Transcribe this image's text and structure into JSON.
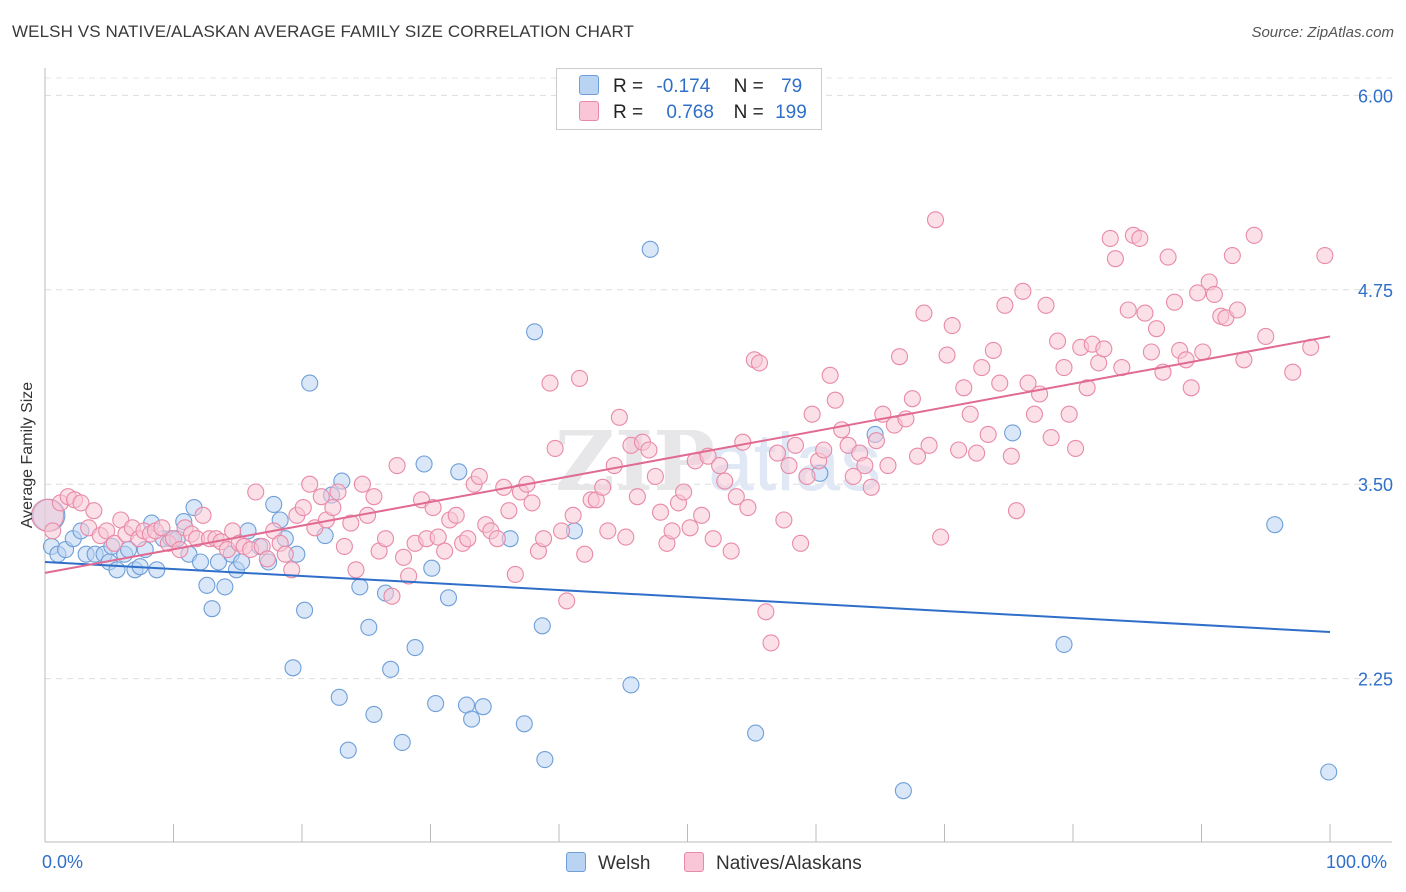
{
  "title": "WELSH VS NATIVE/ALASKAN AVERAGE FAMILY SIZE CORRELATION CHART",
  "source": "Source: ZipAtlas.com",
  "watermark": "ZIPatlas",
  "legend": {
    "r_label": "R =",
    "n_label": "N =",
    "rows": [
      {
        "r": "-0.174",
        "n": "79",
        "color": "#b9d3f2",
        "border": "#6f9fd8"
      },
      {
        "r": "0.768",
        "n": "199",
        "color": "#f8c6d6",
        "border": "#e88aa8"
      }
    ]
  },
  "bottom_legend": [
    {
      "label": "Welsh",
      "color": "#b9d3f2",
      "border": "#6f9fd8"
    },
    {
      "label": "Natives/Alaskans",
      "color": "#f8c6d6",
      "border": "#e88aa8"
    }
  ],
  "x_tick_labels": {
    "left": "0.0%",
    "right": "100.0%"
  },
  "chart_data": {
    "type": "scatter",
    "title": "WELSH VS NATIVE/ALASKAN AVERAGE FAMILY SIZE CORRELATION CHART",
    "xlabel": "",
    "ylabel": "Average Family Size",
    "xlim": [
      0,
      100
    ],
    "ylim": [
      1.2,
      6.15
    ],
    "y_ticks": [
      2.25,
      3.5,
      4.75,
      6.0
    ],
    "y_tick_labels": [
      "2.25",
      "3.50",
      "4.75",
      "6.00"
    ],
    "grid": true,
    "legend_position": "top-center",
    "series": [
      {
        "name": "Welsh",
        "color": "#6f9fd8",
        "fill": "#b9d3f2",
        "trend": {
          "x0": 0,
          "y0": 3.0,
          "x1": 100,
          "y1": 2.55,
          "color": "#2f6fc9"
        },
        "points": [
          [
            0.3,
            3.3
          ],
          [
            0.5,
            3.1
          ],
          [
            1,
            3.05
          ],
          [
            1.6,
            3.08
          ],
          [
            2.2,
            3.15
          ],
          [
            2.8,
            3.2
          ],
          [
            3.2,
            3.05
          ],
          [
            3.9,
            3.05
          ],
          [
            4.6,
            3.05
          ],
          [
            5.0,
            3.0
          ],
          [
            5.2,
            3.1
          ],
          [
            5.6,
            2.95
          ],
          [
            6.2,
            3.05
          ],
          [
            6.5,
            3.08
          ],
          [
            7.0,
            2.95
          ],
          [
            7.4,
            2.97
          ],
          [
            7.8,
            3.08
          ],
          [
            8.3,
            3.25
          ],
          [
            8.7,
            2.95
          ],
          [
            9.2,
            3.15
          ],
          [
            9.8,
            3.15
          ],
          [
            10.3,
            3.15
          ],
          [
            10.8,
            3.26
          ],
          [
            11.2,
            3.05
          ],
          [
            11.6,
            3.35
          ],
          [
            12.1,
            3.0
          ],
          [
            12.6,
            2.85
          ],
          [
            13.0,
            2.7
          ],
          [
            13.5,
            3.0
          ],
          [
            14.0,
            2.84
          ],
          [
            14.5,
            3.05
          ],
          [
            14.9,
            2.95
          ],
          [
            15.3,
            3.0
          ],
          [
            15.8,
            3.2
          ],
          [
            16.7,
            3.1
          ],
          [
            17.4,
            3.0
          ],
          [
            17.8,
            3.37
          ],
          [
            18.3,
            3.27
          ],
          [
            18.7,
            3.15
          ],
          [
            19.6,
            3.05
          ],
          [
            20.2,
            2.69
          ],
          [
            20.6,
            4.15
          ],
          [
            19.3,
            2.32
          ],
          [
            21.8,
            3.17
          ],
          [
            22.3,
            3.43
          ],
          [
            22.9,
            2.13
          ],
          [
            23.6,
            1.79
          ],
          [
            23.1,
            3.52
          ],
          [
            24.5,
            2.84
          ],
          [
            25.2,
            2.58
          ],
          [
            25.6,
            2.02
          ],
          [
            26.5,
            2.8
          ],
          [
            26.9,
            2.31
          ],
          [
            27.8,
            1.84
          ],
          [
            28.8,
            2.45
          ],
          [
            29.5,
            3.63
          ],
          [
            30.1,
            2.96
          ],
          [
            30.4,
            2.09
          ],
          [
            31.4,
            2.77
          ],
          [
            32.2,
            3.58
          ],
          [
            32.8,
            2.08
          ],
          [
            33.2,
            1.99
          ],
          [
            34.1,
            2.07
          ],
          [
            36.2,
            3.15
          ],
          [
            37.3,
            1.96
          ],
          [
            38.1,
            4.48
          ],
          [
            38.7,
            2.59
          ],
          [
            38.9,
            1.73
          ],
          [
            41.2,
            3.2
          ],
          [
            45.6,
            2.21
          ],
          [
            47.1,
            5.01
          ],
          [
            55.3,
            1.9
          ],
          [
            60.3,
            3.57
          ],
          [
            64.6,
            3.82
          ],
          [
            66.8,
            1.53
          ],
          [
            75.3,
            3.83
          ],
          [
            79.3,
            2.47
          ],
          [
            95.7,
            3.24
          ],
          [
            99.9,
            1.65
          ]
        ]
      },
      {
        "name": "Natives/Alaskans",
        "color": "#e88aa8",
        "fill": "#f8c6d6",
        "trend": {
          "x0": 0,
          "y0": 2.93,
          "x1": 100,
          "y1": 4.45,
          "color": "#e06a92"
        },
        "points": [
          [
            0.2,
            3.3
          ],
          [
            0.6,
            3.2
          ],
          [
            1.2,
            3.38
          ],
          [
            1.8,
            3.42
          ],
          [
            2.3,
            3.4
          ],
          [
            2.8,
            3.38
          ],
          [
            3.4,
            3.22
          ],
          [
            3.8,
            3.33
          ],
          [
            4.3,
            3.17
          ],
          [
            4.8,
            3.2
          ],
          [
            5.4,
            3.12
          ],
          [
            5.9,
            3.27
          ],
          [
            6.3,
            3.18
          ],
          [
            6.8,
            3.22
          ],
          [
            7.3,
            3.15
          ],
          [
            7.7,
            3.2
          ],
          [
            8.2,
            3.18
          ],
          [
            8.6,
            3.2
          ],
          [
            9.1,
            3.22
          ],
          [
            9.6,
            3.12
          ],
          [
            10.0,
            3.15
          ],
          [
            10.5,
            3.08
          ],
          [
            10.9,
            3.22
          ],
          [
            11.4,
            3.18
          ],
          [
            11.8,
            3.15
          ],
          [
            12.3,
            3.3
          ],
          [
            12.8,
            3.15
          ],
          [
            13.3,
            3.15
          ],
          [
            13.7,
            3.13
          ],
          [
            14.2,
            3.08
          ],
          [
            14.6,
            3.2
          ],
          [
            15.1,
            3.12
          ],
          [
            15.5,
            3.1
          ],
          [
            16.0,
            3.08
          ],
          [
            16.4,
            3.45
          ],
          [
            16.9,
            3.1
          ],
          [
            17.3,
            3.02
          ],
          [
            17.8,
            3.2
          ],
          [
            18.3,
            3.12
          ],
          [
            18.7,
            3.05
          ],
          [
            19.2,
            2.95
          ],
          [
            19.6,
            3.3
          ],
          [
            20.1,
            3.35
          ],
          [
            20.6,
            3.5
          ],
          [
            21.0,
            3.22
          ],
          [
            21.5,
            3.42
          ],
          [
            21.9,
            3.27
          ],
          [
            22.4,
            3.35
          ],
          [
            22.8,
            3.45
          ],
          [
            23.3,
            3.1
          ],
          [
            23.8,
            3.25
          ],
          [
            24.2,
            2.95
          ],
          [
            24.7,
            3.5
          ],
          [
            25.1,
            3.3
          ],
          [
            25.6,
            3.42
          ],
          [
            26.0,
            3.07
          ],
          [
            26.5,
            3.15
          ],
          [
            27.0,
            2.78
          ],
          [
            27.4,
            3.62
          ],
          [
            27.9,
            3.03
          ],
          [
            28.3,
            2.91
          ],
          [
            28.8,
            3.12
          ],
          [
            29.3,
            3.4
          ],
          [
            29.7,
            3.15
          ],
          [
            30.2,
            3.35
          ],
          [
            30.6,
            3.16
          ],
          [
            31.1,
            3.07
          ],
          [
            31.5,
            3.27
          ],
          [
            32.0,
            3.3
          ],
          [
            32.5,
            3.12
          ],
          [
            32.9,
            3.15
          ],
          [
            33.4,
            3.5
          ],
          [
            33.8,
            3.55
          ],
          [
            34.3,
            3.24
          ],
          [
            34.7,
            3.2
          ],
          [
            35.2,
            3.15
          ],
          [
            35.7,
            3.48
          ],
          [
            36.1,
            3.33
          ],
          [
            36.6,
            2.92
          ],
          [
            37.0,
            3.45
          ],
          [
            37.5,
            3.5
          ],
          [
            37.9,
            3.38
          ],
          [
            38.4,
            3.07
          ],
          [
            38.8,
            3.15
          ],
          [
            39.3,
            4.15
          ],
          [
            39.7,
            3.73
          ],
          [
            40.2,
            3.2
          ],
          [
            40.6,
            2.75
          ],
          [
            41.1,
            3.3
          ],
          [
            41.6,
            4.18
          ],
          [
            42.0,
            3.05
          ],
          [
            42.5,
            3.4
          ],
          [
            42.9,
            3.4
          ],
          [
            43.4,
            3.48
          ],
          [
            43.8,
            3.2
          ],
          [
            44.3,
            3.62
          ],
          [
            44.7,
            3.93
          ],
          [
            45.2,
            3.16
          ],
          [
            45.6,
            3.75
          ],
          [
            46.1,
            3.42
          ],
          [
            46.5,
            3.77
          ],
          [
            47.0,
            3.72
          ],
          [
            47.5,
            3.55
          ],
          [
            47.9,
            3.32
          ],
          [
            48.4,
            3.12
          ],
          [
            48.8,
            3.2
          ],
          [
            49.3,
            3.38
          ],
          [
            49.7,
            3.45
          ],
          [
            50.2,
            3.22
          ],
          [
            50.6,
            3.65
          ],
          [
            51.1,
            3.3
          ],
          [
            51.6,
            3.68
          ],
          [
            52.0,
            3.15
          ],
          [
            52.5,
            3.62
          ],
          [
            52.9,
            3.52
          ],
          [
            53.4,
            3.07
          ],
          [
            53.8,
            3.42
          ],
          [
            54.3,
            3.77
          ],
          [
            54.7,
            3.35
          ],
          [
            55.2,
            4.3
          ],
          [
            55.6,
            4.28
          ],
          [
            56.1,
            2.68
          ],
          [
            56.5,
            2.48
          ],
          [
            57.0,
            3.7
          ],
          [
            57.5,
            3.27
          ],
          [
            57.9,
            3.62
          ],
          [
            58.4,
            3.75
          ],
          [
            58.8,
            3.12
          ],
          [
            59.3,
            3.55
          ],
          [
            59.7,
            3.95
          ],
          [
            60.2,
            3.65
          ],
          [
            60.6,
            3.72
          ],
          [
            61.1,
            4.2
          ],
          [
            61.5,
            4.04
          ],
          [
            62.0,
            3.85
          ],
          [
            62.5,
            3.75
          ],
          [
            62.9,
            3.55
          ],
          [
            63.4,
            3.7
          ],
          [
            63.8,
            3.62
          ],
          [
            64.3,
            3.48
          ],
          [
            64.7,
            3.78
          ],
          [
            65.2,
            3.95
          ],
          [
            65.6,
            3.62
          ],
          [
            66.1,
            3.88
          ],
          [
            66.5,
            4.32
          ],
          [
            67.0,
            3.92
          ],
          [
            67.5,
            4.05
          ],
          [
            67.9,
            3.68
          ],
          [
            68.4,
            4.6
          ],
          [
            68.8,
            3.75
          ],
          [
            69.3,
            5.2
          ],
          [
            69.7,
            3.16
          ],
          [
            70.2,
            4.33
          ],
          [
            70.6,
            4.52
          ],
          [
            71.1,
            3.72
          ],
          [
            71.5,
            4.12
          ],
          [
            72.0,
            3.95
          ],
          [
            72.5,
            3.7
          ],
          [
            72.9,
            4.25
          ],
          [
            73.4,
            3.82
          ],
          [
            73.8,
            4.36
          ],
          [
            74.3,
            4.15
          ],
          [
            74.7,
            4.65
          ],
          [
            75.2,
            3.68
          ],
          [
            75.6,
            3.33
          ],
          [
            76.1,
            4.74
          ],
          [
            76.5,
            4.15
          ],
          [
            77.0,
            3.95
          ],
          [
            77.4,
            4.08
          ],
          [
            77.9,
            4.65
          ],
          [
            78.3,
            3.8
          ],
          [
            78.8,
            4.42
          ],
          [
            79.3,
            4.25
          ],
          [
            79.7,
            3.95
          ],
          [
            80.2,
            3.73
          ],
          [
            80.6,
            4.38
          ],
          [
            81.1,
            4.12
          ],
          [
            81.5,
            4.4
          ],
          [
            82.0,
            4.28
          ],
          [
            82.4,
            4.37
          ],
          [
            82.9,
            5.08
          ],
          [
            83.3,
            4.95
          ],
          [
            83.8,
            4.25
          ],
          [
            84.3,
            4.62
          ],
          [
            84.7,
            5.1
          ],
          [
            85.2,
            5.08
          ],
          [
            85.6,
            4.6
          ],
          [
            86.1,
            4.35
          ],
          [
            86.5,
            4.5
          ],
          [
            87.0,
            4.22
          ],
          [
            87.4,
            4.96
          ],
          [
            87.9,
            4.67
          ],
          [
            88.3,
            4.36
          ],
          [
            88.8,
            4.3
          ],
          [
            89.2,
            4.12
          ],
          [
            89.7,
            4.73
          ],
          [
            90.1,
            4.35
          ],
          [
            90.6,
            4.8
          ],
          [
            91.0,
            4.72
          ],
          [
            91.5,
            4.58
          ],
          [
            91.9,
            4.57
          ],
          [
            92.4,
            4.97
          ],
          [
            92.8,
            4.62
          ],
          [
            93.3,
            4.3
          ],
          [
            94.1,
            5.1
          ],
          [
            95.0,
            4.45
          ],
          [
            97.1,
            4.22
          ],
          [
            98.5,
            4.38
          ],
          [
            99.6,
            4.97
          ]
        ]
      }
    ]
  }
}
